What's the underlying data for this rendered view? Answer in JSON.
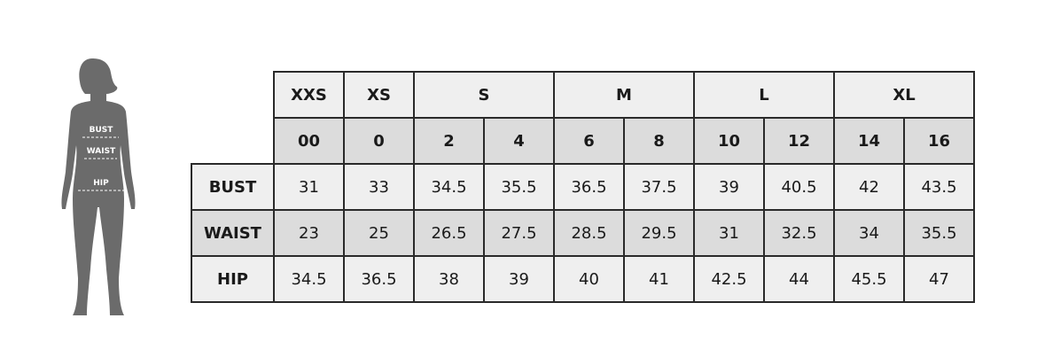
{
  "figure": {
    "labels": [
      "BUST",
      "WAIST",
      "HIP"
    ],
    "color": "#6b6b6b"
  },
  "sizes": [
    {
      "label": "XXS",
      "span": 1
    },
    {
      "label": "XS",
      "span": 1
    },
    {
      "label": "S",
      "span": 2
    },
    {
      "label": "M",
      "span": 2
    },
    {
      "label": "L",
      "span": 2
    },
    {
      "label": "XL",
      "span": 2
    }
  ],
  "numeric_sizes": [
    "00",
    "0",
    "2",
    "4",
    "6",
    "8",
    "10",
    "12",
    "14",
    "16"
  ],
  "rows": [
    {
      "label": "BUST",
      "values": [
        "31",
        "33",
        "34.5",
        "35.5",
        "36.5",
        "37.5",
        "39",
        "40.5",
        "42",
        "43.5"
      ]
    },
    {
      "label": "WAIST",
      "values": [
        "23",
        "25",
        "26.5",
        "27.5",
        "28.5",
        "29.5",
        "31",
        "32.5",
        "34",
        "35.5"
      ]
    },
    {
      "label": "HIP",
      "values": [
        "34.5",
        "36.5",
        "38",
        "39",
        "40",
        "41",
        "42.5",
        "44",
        "45.5",
        "47"
      ]
    }
  ],
  "colors": {
    "light": "#efefef",
    "dark": "#dcdcdc",
    "border": "#2a2a2a"
  }
}
